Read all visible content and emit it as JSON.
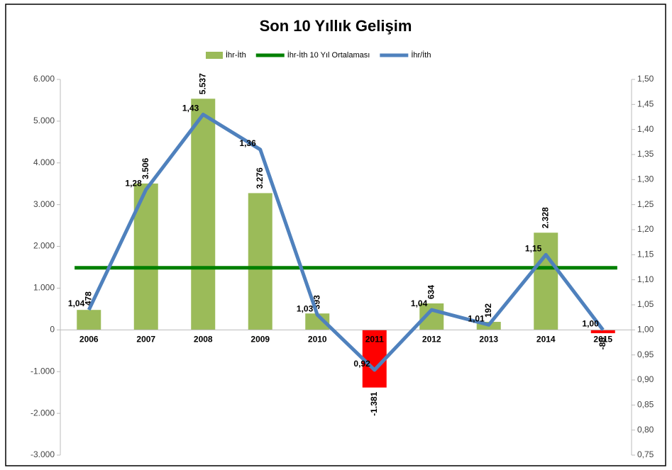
{
  "chart_data": {
    "type": "combo",
    "title": "Son 10 Yıllık Gelişim",
    "categories": [
      "2006",
      "2007",
      "2008",
      "2009",
      "2010",
      "2011",
      "2012",
      "2013",
      "2014",
      "2015"
    ],
    "series": [
      {
        "name": "İhr-İth",
        "kind": "bar",
        "color": "#9bbb59",
        "negative_color": "#ff0000",
        "values": [
          478,
          3506,
          5537,
          3276,
          393,
          -1381,
          634,
          192,
          2328,
          -80
        ],
        "value_labels": [
          "478",
          "3.506",
          "5.537",
          "3.276",
          "393",
          "-1.381",
          "634",
          "192",
          "2.328",
          "-80"
        ]
      },
      {
        "name": "İhr-İth 10 Yıl Ortalaması",
        "kind": "line",
        "color": "#008000",
        "values": [
          1488,
          1488,
          1488,
          1488,
          1488,
          1488,
          1488,
          1488,
          1488,
          1488
        ]
      },
      {
        "name": "İhr/İth",
        "kind": "line",
        "axis": "y2",
        "color": "#4f81bd",
        "values": [
          1.04,
          1.28,
          1.43,
          1.36,
          1.03,
          0.92,
          1.04,
          1.01,
          1.15,
          1.0
        ],
        "value_labels": [
          "1,04",
          "1,28",
          "1,43",
          "1,36",
          "1,03",
          "0,92",
          "1,04",
          "1,01",
          "1,15",
          "1,00"
        ]
      }
    ],
    "ylim": [
      -3000,
      6000
    ],
    "yticks": [
      {
        "value": -3000,
        "label": "-3.000"
      },
      {
        "value": -2000,
        "label": "-2.000"
      },
      {
        "value": -1000,
        "label": "-1.000"
      },
      0,
      {
        "value": 1000,
        "label": "1.000"
      },
      {
        "value": 2000,
        "label": "2.000"
      },
      {
        "value": 3000,
        "label": "3.000"
      },
      {
        "value": 4000,
        "label": "4.000"
      },
      {
        "value": 5000,
        "label": "5.000"
      },
      {
        "value": 6000,
        "label": "6.000"
      }
    ],
    "y2lim": [
      0.75,
      1.5
    ],
    "y2ticks": [
      {
        "value": 0.75,
        "label": "0,75"
      },
      {
        "value": 0.8,
        "label": "0,80"
      },
      {
        "value": 0.85,
        "label": "0,85"
      },
      {
        "value": 0.9,
        "label": "0,90"
      },
      {
        "value": 0.95,
        "label": "0,95"
      },
      {
        "value": 1.0,
        "label": "1,00"
      },
      {
        "value": 1.05,
        "label": "1,05"
      },
      {
        "value": 1.1,
        "label": "1,10"
      },
      {
        "value": 1.15,
        "label": "1,15"
      },
      {
        "value": 1.2,
        "label": "1,20"
      },
      {
        "value": 1.25,
        "label": "1,25"
      },
      {
        "value": 1.3,
        "label": "1,30"
      },
      {
        "value": 1.35,
        "label": "1,35"
      },
      {
        "value": 1.4,
        "label": "1,40"
      },
      {
        "value": 1.45,
        "label": "1,45"
      },
      {
        "value": 1.5,
        "label": "1,50"
      }
    ],
    "legend": "top"
  }
}
